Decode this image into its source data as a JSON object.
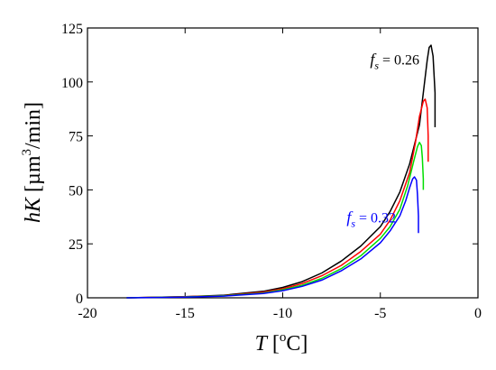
{
  "chart_data": {
    "type": "line",
    "xlabel": {
      "main": "T",
      "bracket_open": " [",
      "sup": "o",
      "unit": "C]"
    },
    "ylabel": {
      "main": "hK",
      "bracket_open": " [µm",
      "sup": "3",
      "unit": "/min]"
    },
    "xlim": [
      -20,
      0
    ],
    "ylim": [
      0,
      125
    ],
    "xticks": [
      -20,
      -15,
      -10,
      -5,
      0
    ],
    "yticks": [
      0,
      25,
      50,
      75,
      100,
      125
    ],
    "grid": false,
    "series": [
      {
        "color": "#000000",
        "points": [
          [
            -18,
            0
          ],
          [
            -15,
            0.5
          ],
          [
            -13,
            1.2
          ],
          [
            -11,
            3
          ],
          [
            -10,
            4.8
          ],
          [
            -9,
            7.5
          ],
          [
            -8,
            11.5
          ],
          [
            -7,
            17
          ],
          [
            -6,
            24
          ],
          [
            -5,
            33
          ],
          [
            -4.5,
            40
          ],
          [
            -4,
            49
          ],
          [
            -3.5,
            62
          ],
          [
            -3,
            80
          ],
          [
            -2.8,
            95
          ],
          [
            -2.6,
            110
          ],
          [
            -2.5,
            116
          ],
          [
            -2.4,
            117
          ],
          [
            -2.3,
            112
          ],
          [
            -2.2,
            95
          ],
          [
            -2.2,
            79
          ]
        ]
      },
      {
        "color": "#ff0000",
        "points": [
          [
            -18,
            0
          ],
          [
            -15,
            0.5
          ],
          [
            -13,
            1
          ],
          [
            -11,
            2.6
          ],
          [
            -10,
            4.2
          ],
          [
            -9,
            6.6
          ],
          [
            -8,
            10.2
          ],
          [
            -7,
            15
          ],
          [
            -6,
            21.5
          ],
          [
            -5,
            29.5
          ],
          [
            -4.5,
            36
          ],
          [
            -4,
            45
          ],
          [
            -3.5,
            58
          ],
          [
            -3.2,
            72
          ],
          [
            -3,
            84
          ],
          [
            -2.8,
            91
          ],
          [
            -2.7,
            92
          ],
          [
            -2.6,
            88
          ],
          [
            -2.55,
            75
          ],
          [
            -2.55,
            63
          ]
        ]
      },
      {
        "color": "#00dd00",
        "points": [
          [
            -18,
            0
          ],
          [
            -15,
            0.4
          ],
          [
            -13,
            0.9
          ],
          [
            -11,
            2.2
          ],
          [
            -10,
            3.7
          ],
          [
            -9,
            5.8
          ],
          [
            -8,
            9
          ],
          [
            -7,
            13.5
          ],
          [
            -6,
            19.5
          ],
          [
            -5,
            27.5
          ],
          [
            -4.5,
            33
          ],
          [
            -4,
            41
          ],
          [
            -3.6,
            52
          ],
          [
            -3.3,
            63
          ],
          [
            -3.1,
            70
          ],
          [
            -3,
            72
          ],
          [
            -2.9,
            70.5
          ],
          [
            -2.85,
            65
          ],
          [
            -2.8,
            55
          ],
          [
            -2.8,
            50
          ]
        ]
      },
      {
        "color": "#0000ff",
        "points": [
          [
            -18,
            0
          ],
          [
            -15,
            0.3
          ],
          [
            -13,
            0.8
          ],
          [
            -11,
            2
          ],
          [
            -10,
            3.3
          ],
          [
            -9,
            5.3
          ],
          [
            -8,
            8.2
          ],
          [
            -7,
            12.5
          ],
          [
            -6,
            18
          ],
          [
            -5,
            25.5
          ],
          [
            -4.5,
            31
          ],
          [
            -4,
            38
          ],
          [
            -3.7,
            45
          ],
          [
            -3.5,
            51
          ],
          [
            -3.35,
            55
          ],
          [
            -3.25,
            56
          ],
          [
            -3.15,
            54.5
          ],
          [
            -3.1,
            48
          ],
          [
            -3.05,
            38
          ],
          [
            -3.05,
            30
          ]
        ]
      }
    ],
    "annotations": [
      {
        "base": "f",
        "sub": "s",
        "value": " = 0.26",
        "color": "#000000",
        "x": -3.0,
        "y": 108
      },
      {
        "base": "f",
        "sub": "s",
        "value": " = 0.32",
        "color": "#0000ff",
        "x": -4.2,
        "y": 35
      }
    ]
  }
}
